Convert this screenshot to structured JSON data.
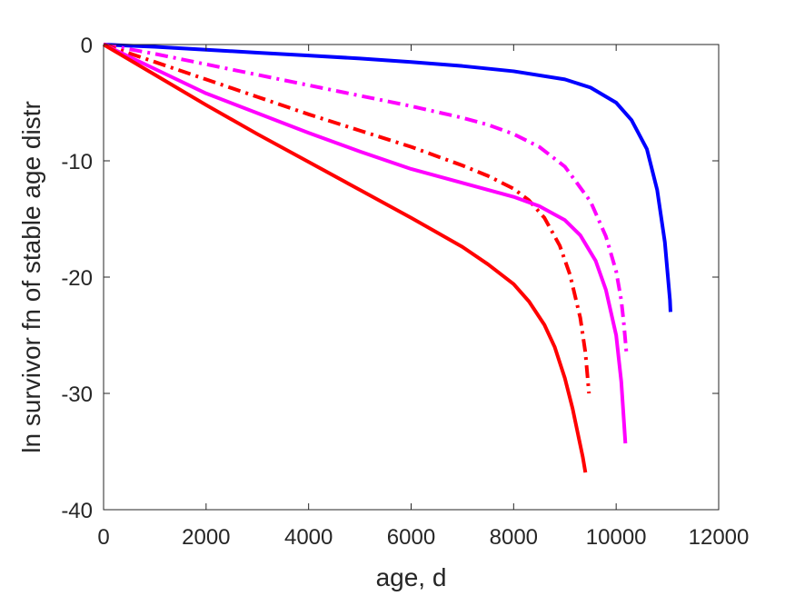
{
  "chart_data": {
    "type": "line",
    "title": "",
    "xlabel": "age, d",
    "ylabel": "ln survivor fn of stable age distr",
    "xlim": [
      0,
      12000
    ],
    "ylim": [
      -40,
      0
    ],
    "xticks": [
      0,
      2000,
      4000,
      6000,
      8000,
      10000,
      12000
    ],
    "yticks": [
      0,
      -10,
      -20,
      -30,
      -40
    ],
    "xtick_labels": [
      "0",
      "2000",
      "4000",
      "6000",
      "8000",
      "10000",
      "12000"
    ],
    "ytick_labels": [
      "0",
      "-10",
      "-20",
      "-30",
      "-40"
    ],
    "grid": false,
    "legend": null,
    "series": [
      {
        "color": "#0000ff",
        "style": "solid",
        "x": [
          0,
          1000,
          2000,
          3000,
          4000,
          5000,
          6000,
          7000,
          8000,
          9000,
          9500,
          10000,
          10300,
          10600,
          10800,
          10950,
          11000,
          11050,
          11060
        ],
        "y": [
          0,
          -0.2,
          -0.45,
          -0.7,
          -0.95,
          -1.2,
          -1.5,
          -1.85,
          -2.3,
          -3.0,
          -3.7,
          -5.0,
          -6.5,
          -9.0,
          -12.5,
          -17.0,
          -19.5,
          -22.0,
          -23.0
        ]
      },
      {
        "color": "#ff00ff",
        "style": "dashdot",
        "x": [
          0,
          1000,
          2000,
          3000,
          4000,
          5000,
          6000,
          7000,
          7500,
          8000,
          8500,
          9000,
          9500,
          9800,
          10000,
          10100,
          10150,
          10200
        ],
        "y": [
          0,
          -0.8,
          -1.7,
          -2.6,
          -3.5,
          -4.4,
          -5.3,
          -6.3,
          -6.9,
          -7.7,
          -8.8,
          -10.5,
          -13.5,
          -16.5,
          -19.5,
          -22.0,
          -24.0,
          -26.5
        ]
      },
      {
        "color": "#ff0000",
        "style": "dashdot",
        "x": [
          0,
          1000,
          2000,
          3000,
          4000,
          5000,
          6000,
          7000,
          7500,
          8000,
          8300,
          8600,
          8900,
          9100,
          9300,
          9400,
          9470
        ],
        "y": [
          0,
          -1.5,
          -3.0,
          -4.5,
          -6.0,
          -7.4,
          -8.8,
          -10.4,
          -11.3,
          -12.4,
          -13.4,
          -14.9,
          -17.3,
          -19.8,
          -23.5,
          -26.5,
          -30.0
        ]
      },
      {
        "color": "#ff00ff",
        "style": "solid",
        "x": [
          0,
          1000,
          2000,
          3000,
          4000,
          5000,
          6000,
          7000,
          8000,
          8500,
          9000,
          9300,
          9600,
          9800,
          10000,
          10100,
          10180
        ],
        "y": [
          0,
          -2.1,
          -4.2,
          -5.9,
          -7.6,
          -9.2,
          -10.7,
          -11.9,
          -13.1,
          -13.9,
          -15.1,
          -16.4,
          -18.6,
          -21.1,
          -25.0,
          -29.0,
          -34.3
        ]
      },
      {
        "color": "#ff0000",
        "style": "solid",
        "x": [
          0,
          1000,
          2000,
          3000,
          4000,
          5000,
          6000,
          7000,
          7500,
          8000,
          8300,
          8600,
          8800,
          9000,
          9150,
          9250,
          9350,
          9400
        ],
        "y": [
          0,
          -2.6,
          -5.2,
          -7.7,
          -10.1,
          -12.5,
          -14.9,
          -17.4,
          -18.9,
          -20.6,
          -22.1,
          -24.1,
          -26.0,
          -28.7,
          -31.3,
          -33.4,
          -35.5,
          -36.8
        ]
      }
    ]
  }
}
